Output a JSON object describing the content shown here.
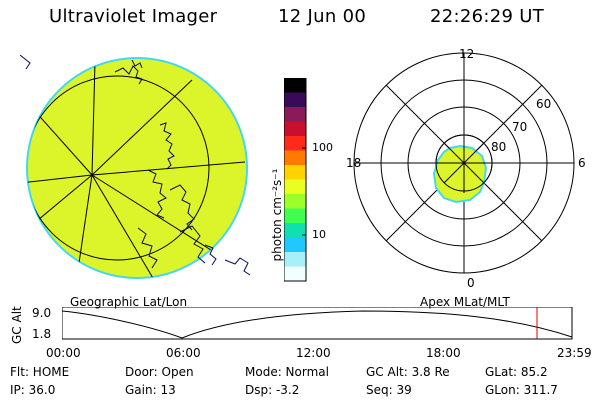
{
  "header": {
    "title": "Ultraviolet Imager",
    "date": "12 Jun 00",
    "time": "22:26:29 UT"
  },
  "colorbar": {
    "unit_label": "photon cm⁻²s⁻¹",
    "ticks": [
      "100",
      "10"
    ],
    "colors": [
      "#000000",
      "#3a0a5a",
      "#8a1a5a",
      "#c8102e",
      "#ff2a1a",
      "#ff7a00",
      "#ffd200",
      "#e8ff20",
      "#9cff2a",
      "#40ff50",
      "#10e0b0",
      "#20c8ff",
      "#a8f0f8",
      "#f0ffff"
    ]
  },
  "map_left": {
    "caption": "Geographic Lat/Lon",
    "fill_color": "#dcf52a",
    "rim_color": "#44d8f0"
  },
  "polar": {
    "caption": "Apex MLat/MLT",
    "time_labels": [
      "12",
      "18",
      "6",
      "0"
    ],
    "lat_labels": [
      "60",
      "70",
      "80"
    ],
    "oval_color": "#dcf52a"
  },
  "altitude_plot": {
    "ylabel": "GC Alt",
    "ymax": "9.0",
    "ymin": "1.8",
    "xticks": [
      "00:00",
      "06:00",
      "12:00",
      "18:00",
      "23:59"
    ],
    "marker_color": "#dd0000"
  },
  "info": {
    "row1": [
      "Flt: HOME",
      "Door: Open",
      "Mode: Normal",
      "GC Alt: 3.8 Re",
      "GLat: 85.2"
    ],
    "row2": [
      "IP: 36.0",
      "Gain: 13",
      "Dsp: -3.2",
      "Seq: 39",
      "GLon: 311.7"
    ]
  }
}
